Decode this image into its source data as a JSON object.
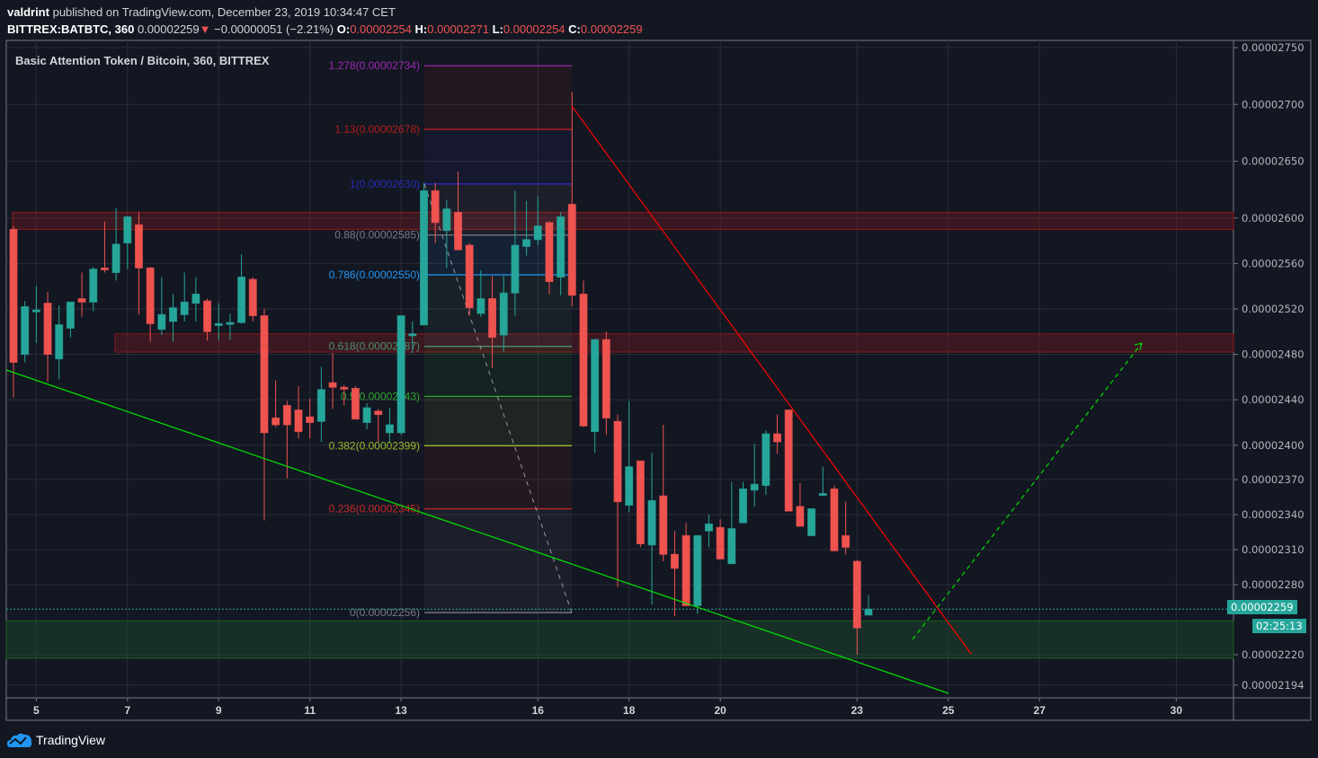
{
  "header": {
    "author": "valdrint",
    "published": "published on TradingView.com, December 23, 2019 10:34:47 CET",
    "symbol": "BITTREX:BATBTC, 360",
    "last": "0.00002259",
    "change": "−0.00000051 (−2.21%)",
    "o_label": "O:",
    "o": "0.00002254",
    "h_label": "H:",
    "h": "0.00002271",
    "l_label": "L:",
    "l": "0.00002254",
    "c_label": "C:",
    "c": "0.00002259",
    "direction_icon": "triangle-down-icon"
  },
  "legend_title": "Basic Attention Token / Bitcoin, 360, BITTREX",
  "price_badge": "0.00002259",
  "countdown": "02:25:13",
  "brand": "TradingView",
  "colors": {
    "up": "#26a69a",
    "down": "#ef5350",
    "background": "#131722",
    "grid": "#2a2e39",
    "support_zone": "#1f4d2e",
    "resistance_zone": "#6b1a22",
    "downtrend_line": "#ff0000",
    "uptrend_line": "#00e000"
  },
  "chart_data": {
    "type": "candlestick",
    "title": "Basic Attention Token / Bitcoin, 360, BITTREX",
    "interval": "360",
    "grid": true,
    "price_scale": "right",
    "y_ticks": [
      "0.00002750",
      "0.00002700",
      "0.00002650",
      "0.00002600",
      "0.00002560",
      "0.00002520",
      "0.00002480",
      "0.00002440",
      "0.00002400",
      "0.00002370",
      "0.00002340",
      "0.00002310",
      "0.00002280",
      "0.00002220",
      "0.00002194"
    ],
    "x_ticks": [
      "5",
      "7",
      "9",
      "11",
      "13",
      "16",
      "18",
      "20",
      "23",
      "25",
      "27",
      "30"
    ],
    "candle_columns": [
      "time",
      "open",
      "high",
      "low",
      "close"
    ],
    "candles": [
      [
        "12-04 12:00",
        2.59e-05,
        2.593e-05,
        2.442e-05,
        2.473e-05
      ],
      [
        "12-04 18:00",
        2.48e-05,
        2.527e-05,
        2.473e-05,
        2.522e-05
      ],
      [
        "12-05 00:00",
        2.518e-05,
        2.54e-05,
        2.49e-05,
        2.519e-05
      ],
      [
        "12-05 06:00",
        2.525e-05,
        2.535e-05,
        2.456e-05,
        2.48e-05
      ],
      [
        "12-05 12:00",
        2.476e-05,
        2.523e-05,
        2.458e-05,
        2.506e-05
      ],
      [
        "12-05 18:00",
        2.503e-05,
        2.526e-05,
        2.495e-05,
        2.526e-05
      ],
      [
        "12-06 00:00",
        2.529e-05,
        2.552e-05,
        2.513e-05,
        2.526e-05
      ],
      [
        "12-06 06:00",
        2.526e-05,
        2.557e-05,
        2.518e-05,
        2.555e-05
      ],
      [
        "12-06 12:00",
        2.556e-05,
        2.597e-05,
        2.552e-05,
        2.555e-05
      ],
      [
        "12-06 18:00",
        2.552e-05,
        2.609e-05,
        2.545e-05,
        2.577e-05
      ],
      [
        "12-07 00:00",
        2.578e-05,
        2.602e-05,
        2.555e-05,
        2.601e-05
      ],
      [
        "12-07 06:00",
        2.594e-05,
        2.605e-05,
        2.515e-05,
        2.556e-05
      ],
      [
        "12-07 12:00",
        2.556e-05,
        2.557e-05,
        2.491e-05,
        2.507e-05
      ],
      [
        "12-07 18:00",
        2.502e-05,
        2.548e-05,
        2.497e-05,
        2.515e-05
      ],
      [
        "12-08 00:00",
        2.509e-05,
        2.533e-05,
        2.491e-05,
        2.521e-05
      ],
      [
        "12-08 06:00",
        2.515e-05,
        2.552e-05,
        2.509e-05,
        2.526e-05
      ],
      [
        "12-08 12:00",
        2.525e-05,
        2.548e-05,
        2.509e-05,
        2.533e-05
      ],
      [
        "12-08 18:00",
        2.527e-05,
        2.529e-05,
        2.492e-05,
        2.5e-05
      ],
      [
        "12-09 00:00",
        2.506e-05,
        2.525e-05,
        2.492e-05,
        2.507e-05
      ],
      [
        "12-09 06:00",
        2.507e-05,
        2.516e-05,
        2.493e-05,
        2.508e-05
      ],
      [
        "12-09 12:00",
        2.508e-05,
        2.568e-05,
        2.507e-05,
        2.548e-05
      ],
      [
        "12-09 18:00",
        2.546e-05,
        2.548e-05,
        2.509e-05,
        2.514e-05
      ],
      [
        "12-10 00:00",
        2.514e-05,
        2.52e-05,
        2.335e-05,
        2.411e-05
      ],
      [
        "12-10 06:00",
        2.424e-05,
        2.457e-05,
        2.416e-05,
        2.418e-05
      ],
      [
        "12-10 12:00",
        2.435e-05,
        2.439e-05,
        2.371e-05,
        2.418e-05
      ],
      [
        "12-10 18:00",
        2.431e-05,
        2.452e-05,
        2.406e-05,
        2.412e-05
      ],
      [
        "12-11 00:00",
        2.425e-05,
        2.441e-05,
        2.406e-05,
        2.42e-05
      ],
      [
        "12-11 06:00",
        2.421e-05,
        2.469e-05,
        2.403e-05,
        2.449e-05
      ],
      [
        "12-11 12:00",
        2.455e-05,
        2.481e-05,
        2.432e-05,
        2.451e-05
      ],
      [
        "12-11 18:00",
        2.451e-05,
        2.453e-05,
        2.435e-05,
        2.45e-05
      ],
      [
        "12-12 00:00",
        2.45e-05,
        2.452e-05,
        2.423e-05,
        2.423e-05
      ],
      [
        "12-12 06:00",
        2.42e-05,
        2.437e-05,
        2.414e-05,
        2.433e-05
      ],
      [
        "12-12 12:00",
        2.43e-05,
        2.432e-05,
        2.403e-05,
        2.427e-05
      ],
      [
        "12-12 18:00",
        2.411e-05,
        2.433e-05,
        2.403e-05,
        2.418e-05
      ],
      [
        "12-13 00:00",
        2.411e-05,
        2.514e-05,
        2.409e-05,
        2.514e-05
      ],
      [
        "12-13 06:00",
        2.497e-05,
        2.509e-05,
        2.481e-05,
        2.498e-05
      ],
      [
        "12-13 12:00",
        2.506e-05,
        2.631e-05,
        2.505e-05,
        2.624e-05
      ],
      [
        "12-13 18:00",
        2.624e-05,
        2.631e-05,
        2.578e-05,
        2.596e-05
      ],
      [
        "12-14 00:00",
        2.589e-05,
        2.616e-05,
        2.556e-05,
        2.608e-05
      ],
      [
        "12-14 06:00",
        2.605e-05,
        2.641e-05,
        2.572e-05,
        2.572e-05
      ],
      [
        "12-14 12:00",
        2.576e-05,
        2.578e-05,
        2.514e-05,
        2.521e-05
      ],
      [
        "12-14 18:00",
        2.516e-05,
        2.554e-05,
        2.513e-05,
        2.529e-05
      ],
      [
        "12-15 00:00",
        2.529e-05,
        2.549e-05,
        2.468e-05,
        2.495e-05
      ],
      [
        "12-15 06:00",
        2.497e-05,
        2.549e-05,
        2.482e-05,
        2.534e-05
      ],
      [
        "12-15 12:00",
        2.534e-05,
        2.624e-05,
        2.514e-05,
        2.576e-05
      ],
      [
        "12-15 18:00",
        2.575e-05,
        2.615e-05,
        2.567e-05,
        2.581e-05
      ],
      [
        "12-16 00:00",
        2.581e-05,
        2.619e-05,
        2.576e-05,
        2.593e-05
      ],
      [
        "12-16 06:00",
        2.596e-05,
        2.597e-05,
        2.533e-05,
        2.544e-05
      ],
      [
        "12-16 12:00",
        2.548e-05,
        2.605e-05,
        2.532e-05,
        2.601e-05
      ],
      [
        "12-16 18:00",
        2.612e-05,
        2.711e-05,
        2.522e-05,
        2.532e-05
      ],
      [
        "12-17 00:00",
        2.533e-05,
        2.545e-05,
        2.416e-05,
        2.417e-05
      ],
      [
        "12-17 06:00",
        2.412e-05,
        2.493e-05,
        2.393e-05,
        2.493e-05
      ],
      [
        "12-17 12:00",
        2.493e-05,
        2.5e-05,
        2.409e-05,
        2.424e-05
      ],
      [
        "12-17 18:00",
        2.421e-05,
        2.427e-05,
        2.278e-05,
        2.351e-05
      ],
      [
        "12-18 00:00",
        2.348e-05,
        2.439e-05,
        2.342e-05,
        2.381e-05
      ],
      [
        "12-18 06:00",
        2.386e-05,
        2.386e-05,
        2.312e-05,
        2.315e-05
      ],
      [
        "12-18 12:00",
        2.314e-05,
        2.393e-05,
        2.263e-05,
        2.352e-05
      ],
      [
        "12-18 18:00",
        2.356e-05,
        2.418e-05,
        2.3e-05,
        2.306e-05
      ],
      [
        "12-19 00:00",
        2.306e-05,
        2.326e-05,
        2.253e-05,
        2.294e-05
      ],
      [
        "12-19 06:00",
        2.322e-05,
        2.333e-05,
        2.262e-05,
        2.262e-05
      ],
      [
        "12-19 12:00",
        2.262e-05,
        2.322e-05,
        2.255e-05,
        2.322e-05
      ],
      [
        "12-19 18:00",
        2.326e-05,
        2.34e-05,
        2.312e-05,
        2.332e-05
      ],
      [
        "12-20 00:00",
        2.329e-05,
        2.336e-05,
        2.302e-05,
        2.302e-05
      ],
      [
        "12-20 06:00",
        2.298e-05,
        2.368e-05,
        2.298e-05,
        2.328e-05
      ],
      [
        "12-20 12:00",
        2.333e-05,
        2.368e-05,
        2.333e-05,
        2.362e-05
      ],
      [
        "12-20 18:00",
        2.361e-05,
        2.401e-05,
        2.347e-05,
        2.366e-05
      ],
      [
        "12-21 00:00",
        2.365e-05,
        2.413e-05,
        2.357e-05,
        2.41e-05
      ],
      [
        "12-21 06:00",
        2.41e-05,
        2.427e-05,
        2.392e-05,
        2.403e-05
      ],
      [
        "12-21 12:00",
        2.431e-05,
        2.431e-05,
        2.343e-05,
        2.343e-05
      ],
      [
        "12-21 18:00",
        2.347e-05,
        2.367e-05,
        2.33e-05,
        2.33e-05
      ],
      [
        "12-22 00:00",
        2.322e-05,
        2.345e-05,
        2.322e-05,
        2.345e-05
      ],
      [
        "12-22 06:00",
        2.357e-05,
        2.381e-05,
        2.356e-05,
        2.358e-05
      ],
      [
        "12-22 12:00",
        2.362e-05,
        2.365e-05,
        2.309e-05,
        2.309e-05
      ],
      [
        "12-22 18:00",
        2.322e-05,
        2.351e-05,
        2.306e-05,
        2.312e-05
      ],
      [
        "12-23 00:00",
        2.3e-05,
        2.301e-05,
        2.22e-05,
        2.243e-05
      ],
      [
        "12-23 06:00",
        2.254e-05,
        2.271e-05,
        2.254e-05,
        2.259e-05
      ]
    ],
    "fib_levels": [
      {
        "label": "1.278(0.00002734)",
        "price": 2.734e-05,
        "color": "#9c27b0"
      },
      {
        "label": "1.13(0.00002678)",
        "price": 2.678e-05,
        "color": "#b71c1c"
      },
      {
        "label": "1(0.00002630)",
        "price": 2.63e-05,
        "color": "#2a2ab8"
      },
      {
        "label": "0.88(0.00002585)",
        "price": 2.585e-05,
        "color": "#787b86"
      },
      {
        "label": "0.786(0.00002550)",
        "price": 2.55e-05,
        "color": "#2196f3"
      },
      {
        "label": "0.618(0.00002487)",
        "price": 2.487e-05,
        "color": "#4c8f6a"
      },
      {
        "label": "0.5(0.00002443)",
        "price": 2.443e-05,
        "color": "#2fa52f"
      },
      {
        "label": "0.382(0.00002399)",
        "price": 2.399e-05,
        "color": "#98b82a"
      },
      {
        "label": "0.236(0.00002345)",
        "price": 2.345e-05,
        "color": "#c62828"
      },
      {
        "label": "0(0.00002256)",
        "price": 2.256e-05,
        "color": "#787b86"
      }
    ],
    "zones": [
      {
        "kind": "resistance",
        "from": 2.59e-05,
        "to": 2.605e-05
      },
      {
        "kind": "resistance",
        "from": 2.482e-05,
        "to": 2.498e-05
      },
      {
        "kind": "support",
        "from": 2.217e-05,
        "to": 2.249e-05
      }
    ],
    "last_price": 2.259e-05
  }
}
